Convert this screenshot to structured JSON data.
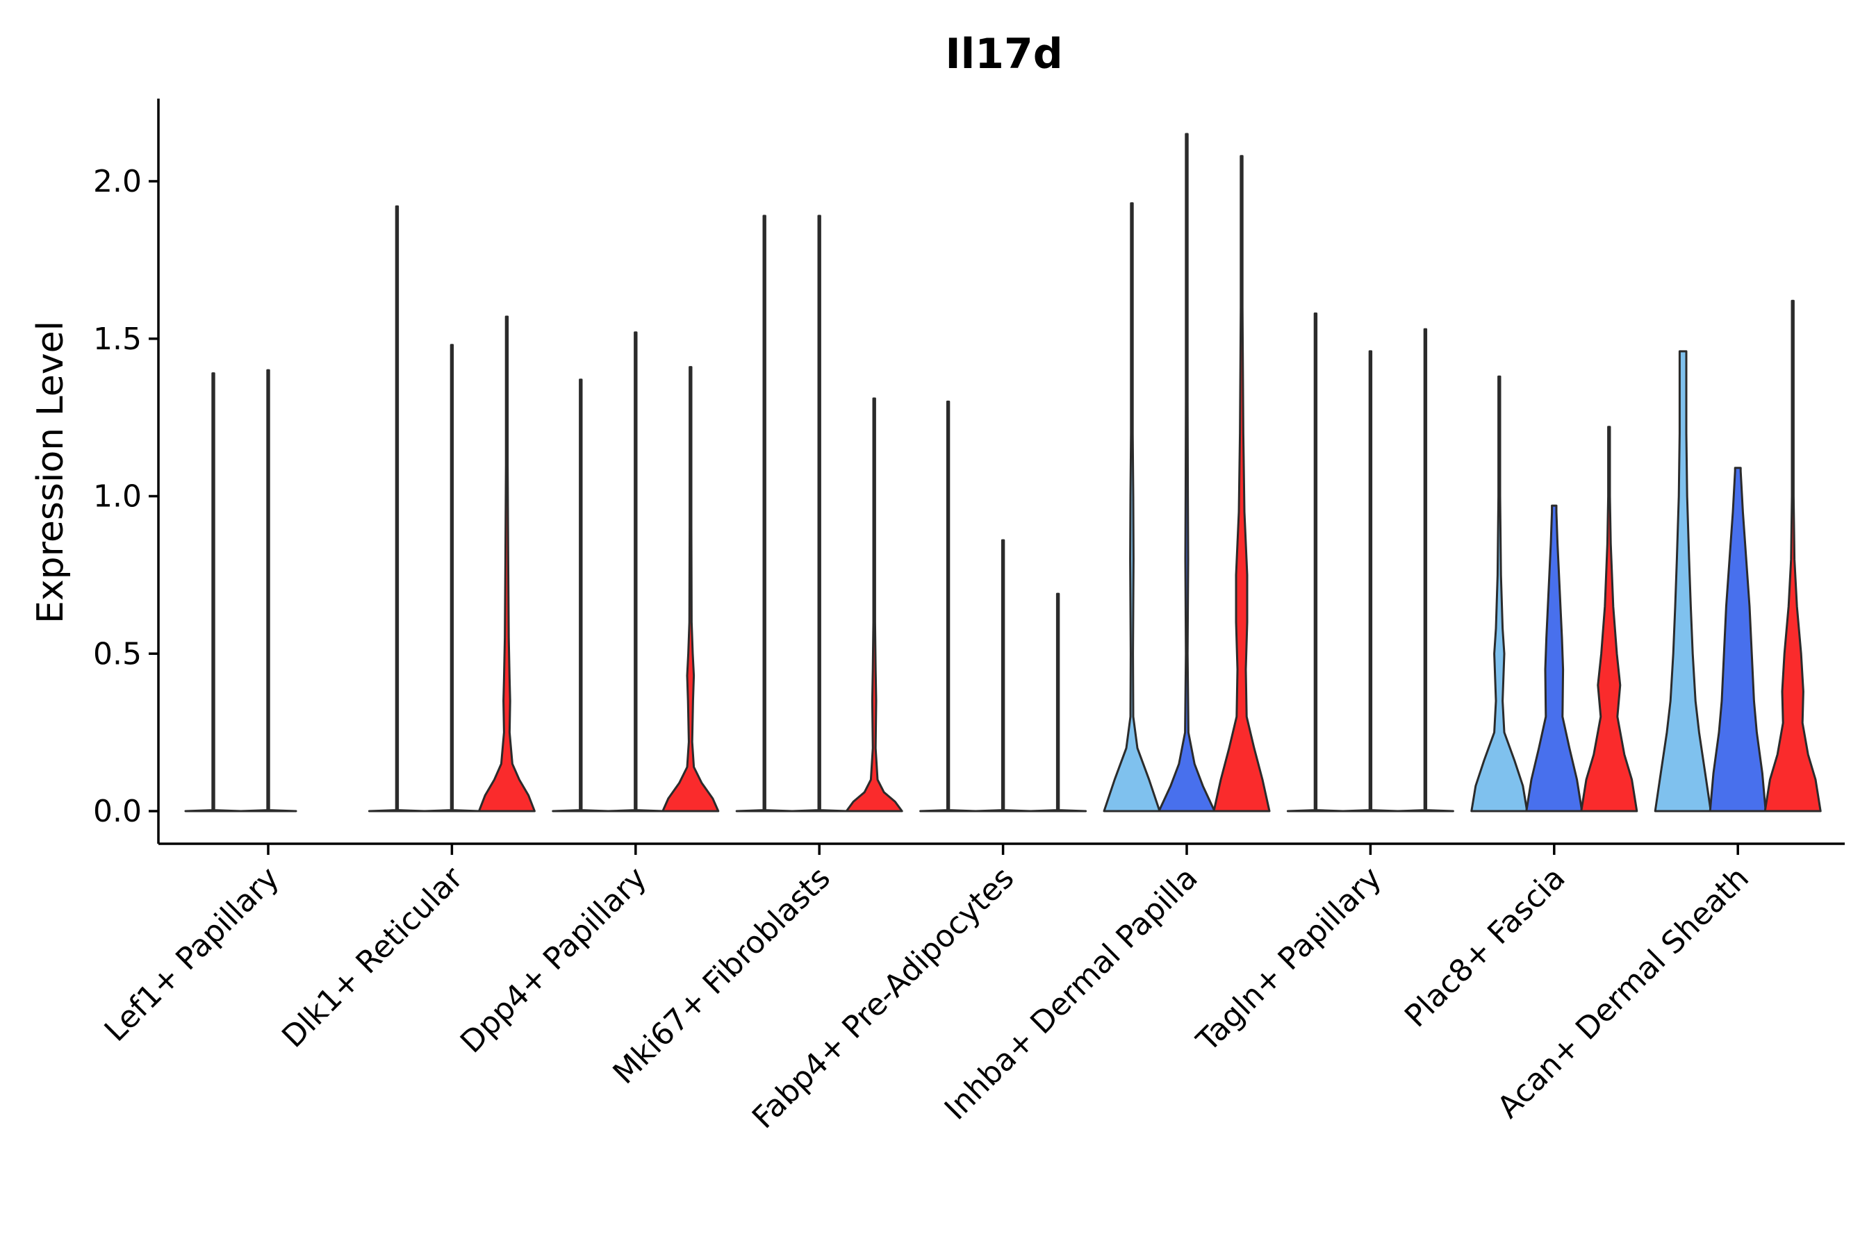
{
  "chart_data": {
    "type": "violin",
    "title": "Il17d",
    "xlabel": "",
    "ylabel": "Expression Level",
    "ylim": [
      -0.1,
      2.27
    ],
    "yticks": [
      0.0,
      0.5,
      1.0,
      1.5,
      2.0
    ],
    "ytick_labels": [
      "0.0",
      "0.5",
      "1.0",
      "1.5",
      "2.0"
    ],
    "legend": "none",
    "group_colors": [
      "#7fc1ee",
      "#4870ed",
      "#fa2b2c"
    ],
    "categories": [
      "Lef1+ Papillary",
      "Dlk1+ Reticular",
      "Dpp4+ Papillary",
      "Mki67+ Fibroblasts",
      "Fabp4+ Pre-Adipocytes",
      "Inhba+ Dermal Papilla",
      "Tagln+ Papillary",
      "Plac8+ Fascia",
      "Acan+ Dermal Sheath"
    ],
    "violins": [
      {
        "category": 0,
        "group": 0,
        "max": 1.39,
        "color": "#7fc1ee",
        "profile": [
          [
            0,
            1
          ],
          [
            0.003,
            0.02
          ],
          [
            0.012,
            0.01
          ],
          [
            1.39,
            0.01
          ]
        ]
      },
      {
        "category": 0,
        "group": 1,
        "max": 1.4,
        "color": "#4870ed",
        "profile": [
          [
            0,
            1
          ],
          [
            0.003,
            0.02
          ],
          [
            0.012,
            0.01
          ],
          [
            1.4,
            0.01
          ]
        ]
      },
      {
        "category": 1,
        "group": 0,
        "max": 1.92,
        "color": "#7fc1ee",
        "profile": [
          [
            0,
            1
          ],
          [
            0.003,
            0.02
          ],
          [
            0.012,
            0.01
          ],
          [
            1.92,
            0.01
          ]
        ]
      },
      {
        "category": 1,
        "group": 1,
        "max": 1.48,
        "color": "#4870ed",
        "profile": [
          [
            0,
            1
          ],
          [
            0.003,
            0.02
          ],
          [
            0.012,
            0.01
          ],
          [
            1.48,
            0.01
          ]
        ]
      },
      {
        "category": 1,
        "group": 2,
        "max": 1.57,
        "color": "#fa2b2c",
        "profile": [
          [
            0,
            1
          ],
          [
            0.05,
            0.78
          ],
          [
            0.1,
            0.45
          ],
          [
            0.15,
            0.2
          ],
          [
            0.25,
            0.1
          ],
          [
            0.35,
            0.12
          ],
          [
            0.42,
            0.1
          ],
          [
            0.55,
            0.07
          ],
          [
            0.8,
            0.05
          ],
          [
            1.1,
            0.03
          ],
          [
            1.57,
            0.01
          ]
        ]
      },
      {
        "category": 2,
        "group": 0,
        "max": 1.37,
        "color": "#7fc1ee",
        "profile": [
          [
            0,
            1
          ],
          [
            0.003,
            0.02
          ],
          [
            0.012,
            0.01
          ],
          [
            1.37,
            0.01
          ]
        ]
      },
      {
        "category": 2,
        "group": 1,
        "max": 1.52,
        "color": "#4870ed",
        "profile": [
          [
            0,
            1
          ],
          [
            0.003,
            0.02
          ],
          [
            0.012,
            0.01
          ],
          [
            1.52,
            0.01
          ]
        ]
      },
      {
        "category": 2,
        "group": 2,
        "max": 1.41,
        "color": "#fa2b2c",
        "profile": [
          [
            0,
            1
          ],
          [
            0.04,
            0.8
          ],
          [
            0.09,
            0.4
          ],
          [
            0.14,
            0.12
          ],
          [
            0.22,
            0.06
          ],
          [
            0.35,
            0.09
          ],
          [
            0.43,
            0.12
          ],
          [
            0.5,
            0.08
          ],
          [
            0.6,
            0.04
          ],
          [
            0.9,
            0.02
          ],
          [
            1.41,
            0.01
          ]
        ]
      },
      {
        "category": 3,
        "group": 0,
        "max": 1.89,
        "color": "#7fc1ee",
        "profile": [
          [
            0,
            1
          ],
          [
            0.003,
            0.02
          ],
          [
            0.012,
            0.01
          ],
          [
            1.89,
            0.01
          ]
        ]
      },
      {
        "category": 3,
        "group": 1,
        "max": 1.89,
        "color": "#4870ed",
        "profile": [
          [
            0,
            1
          ],
          [
            0.003,
            0.02
          ],
          [
            0.012,
            0.01
          ],
          [
            1.89,
            0.01
          ]
        ]
      },
      {
        "category": 3,
        "group": 2,
        "max": 1.31,
        "color": "#fa2b2c",
        "profile": [
          [
            0,
            1
          ],
          [
            0.03,
            0.75
          ],
          [
            0.06,
            0.35
          ],
          [
            0.1,
            0.12
          ],
          [
            0.2,
            0.05
          ],
          [
            0.35,
            0.07
          ],
          [
            0.45,
            0.05
          ],
          [
            0.6,
            0.03
          ],
          [
            0.9,
            0.02
          ],
          [
            1.31,
            0.01
          ]
        ]
      },
      {
        "category": 4,
        "group": 0,
        "max": 1.3,
        "color": "#7fc1ee",
        "profile": [
          [
            0,
            1
          ],
          [
            0.003,
            0.02
          ],
          [
            0.012,
            0.01
          ],
          [
            1.3,
            0.01
          ]
        ]
      },
      {
        "category": 4,
        "group": 1,
        "max": 0.86,
        "color": "#4870ed",
        "profile": [
          [
            0,
            1
          ],
          [
            0.003,
            0.02
          ],
          [
            0.012,
            0.01
          ],
          [
            0.86,
            0.01
          ]
        ]
      },
      {
        "category": 4,
        "group": 2,
        "max": 0.69,
        "color": "#fa2b2c",
        "profile": [
          [
            0,
            1
          ],
          [
            0.003,
            0.02
          ],
          [
            0.012,
            0.01
          ],
          [
            0.69,
            0.01
          ]
        ]
      },
      {
        "category": 5,
        "group": 0,
        "max": 1.93,
        "color": "#7fc1ee",
        "profile": [
          [
            0,
            1
          ],
          [
            0.1,
            0.62
          ],
          [
            0.2,
            0.2
          ],
          [
            0.3,
            0.05
          ],
          [
            0.5,
            0.04
          ],
          [
            0.8,
            0.06
          ],
          [
            1.0,
            0.05
          ],
          [
            1.2,
            0.03
          ],
          [
            1.5,
            0.02
          ],
          [
            1.93,
            0.01
          ]
        ]
      },
      {
        "category": 5,
        "group": 1,
        "max": 2.15,
        "color": "#4870ed",
        "profile": [
          [
            0,
            1
          ],
          [
            0.08,
            0.58
          ],
          [
            0.15,
            0.28
          ],
          [
            0.25,
            0.06
          ],
          [
            0.5,
            0.03
          ],
          [
            0.8,
            0.05
          ],
          [
            1.0,
            0.04
          ],
          [
            1.3,
            0.02
          ],
          [
            1.7,
            0.015
          ],
          [
            2.15,
            0.01
          ]
        ]
      },
      {
        "category": 5,
        "group": 2,
        "max": 2.08,
        "color": "#fa2b2c",
        "profile": [
          [
            0,
            1
          ],
          [
            0.1,
            0.75
          ],
          [
            0.2,
            0.45
          ],
          [
            0.3,
            0.18
          ],
          [
            0.45,
            0.15
          ],
          [
            0.6,
            0.2
          ],
          [
            0.75,
            0.2
          ],
          [
            0.95,
            0.1
          ],
          [
            1.2,
            0.06
          ],
          [
            1.6,
            0.03
          ],
          [
            2.08,
            0.01
          ]
        ]
      },
      {
        "category": 6,
        "group": 0,
        "max": 1.58,
        "color": "#7fc1ee",
        "profile": [
          [
            0,
            1
          ],
          [
            0.003,
            0.02
          ],
          [
            0.012,
            0.01
          ],
          [
            1.58,
            0.01
          ]
        ]
      },
      {
        "category": 6,
        "group": 1,
        "max": 1.46,
        "color": "#4870ed",
        "profile": [
          [
            0,
            1
          ],
          [
            0.003,
            0.02
          ],
          [
            0.012,
            0.01
          ],
          [
            1.46,
            0.01
          ]
        ]
      },
      {
        "category": 6,
        "group": 2,
        "max": 1.53,
        "color": "#fa2b2c",
        "profile": [
          [
            0,
            1
          ],
          [
            0.003,
            0.02
          ],
          [
            0.012,
            0.01
          ],
          [
            1.53,
            0.01
          ]
        ]
      },
      {
        "category": 7,
        "group": 0,
        "max": 1.38,
        "color": "#7fc1ee",
        "profile": [
          [
            0,
            1
          ],
          [
            0.08,
            0.85
          ],
          [
            0.16,
            0.55
          ],
          [
            0.25,
            0.18
          ],
          [
            0.35,
            0.12
          ],
          [
            0.5,
            0.18
          ],
          [
            0.58,
            0.12
          ],
          [
            0.75,
            0.06
          ],
          [
            1.0,
            0.03
          ],
          [
            1.38,
            0.01
          ]
        ]
      },
      {
        "category": 7,
        "group": 1,
        "max": 0.97,
        "color": "#4870ed",
        "profile": [
          [
            0,
            1
          ],
          [
            0.1,
            0.82
          ],
          [
            0.2,
            0.55
          ],
          [
            0.3,
            0.3
          ],
          [
            0.45,
            0.32
          ],
          [
            0.55,
            0.28
          ],
          [
            0.7,
            0.2
          ],
          [
            0.85,
            0.12
          ],
          [
            0.95,
            0.08
          ],
          [
            0.97,
            0.08
          ]
        ]
      },
      {
        "category": 7,
        "group": 2,
        "max": 1.22,
        "color": "#fa2b2c",
        "profile": [
          [
            0,
            1
          ],
          [
            0.1,
            0.82
          ],
          [
            0.18,
            0.55
          ],
          [
            0.3,
            0.3
          ],
          [
            0.4,
            0.4
          ],
          [
            0.5,
            0.28
          ],
          [
            0.65,
            0.15
          ],
          [
            0.85,
            0.06
          ],
          [
            1.0,
            0.03
          ],
          [
            1.22,
            0.01
          ]
        ]
      },
      {
        "category": 8,
        "group": 0,
        "max": 1.46,
        "color": "#7fc1ee",
        "profile": [
          [
            0,
            1
          ],
          [
            0.12,
            0.8
          ],
          [
            0.25,
            0.58
          ],
          [
            0.35,
            0.45
          ],
          [
            0.5,
            0.35
          ],
          [
            0.65,
            0.28
          ],
          [
            0.8,
            0.22
          ],
          [
            1.0,
            0.15
          ],
          [
            1.2,
            0.12
          ],
          [
            1.44,
            0.12
          ],
          [
            1.46,
            0.12
          ]
        ]
      },
      {
        "category": 8,
        "group": 1,
        "max": 1.09,
        "color": "#4870ed",
        "profile": [
          [
            0,
            1
          ],
          [
            0.12,
            0.88
          ],
          [
            0.25,
            0.68
          ],
          [
            0.35,
            0.58
          ],
          [
            0.5,
            0.5
          ],
          [
            0.65,
            0.42
          ],
          [
            0.8,
            0.3
          ],
          [
            0.95,
            0.18
          ],
          [
            1.08,
            0.1
          ],
          [
            1.09,
            0.1
          ]
        ]
      },
      {
        "category": 8,
        "group": 2,
        "max": 1.62,
        "color": "#fa2b2c",
        "profile": [
          [
            0,
            1
          ],
          [
            0.1,
            0.82
          ],
          [
            0.18,
            0.55
          ],
          [
            0.28,
            0.35
          ],
          [
            0.38,
            0.38
          ],
          [
            0.5,
            0.3
          ],
          [
            0.65,
            0.15
          ],
          [
            0.8,
            0.06
          ],
          [
            1.0,
            0.03
          ],
          [
            1.3,
            0.02
          ],
          [
            1.62,
            0.01
          ]
        ]
      }
    ]
  }
}
